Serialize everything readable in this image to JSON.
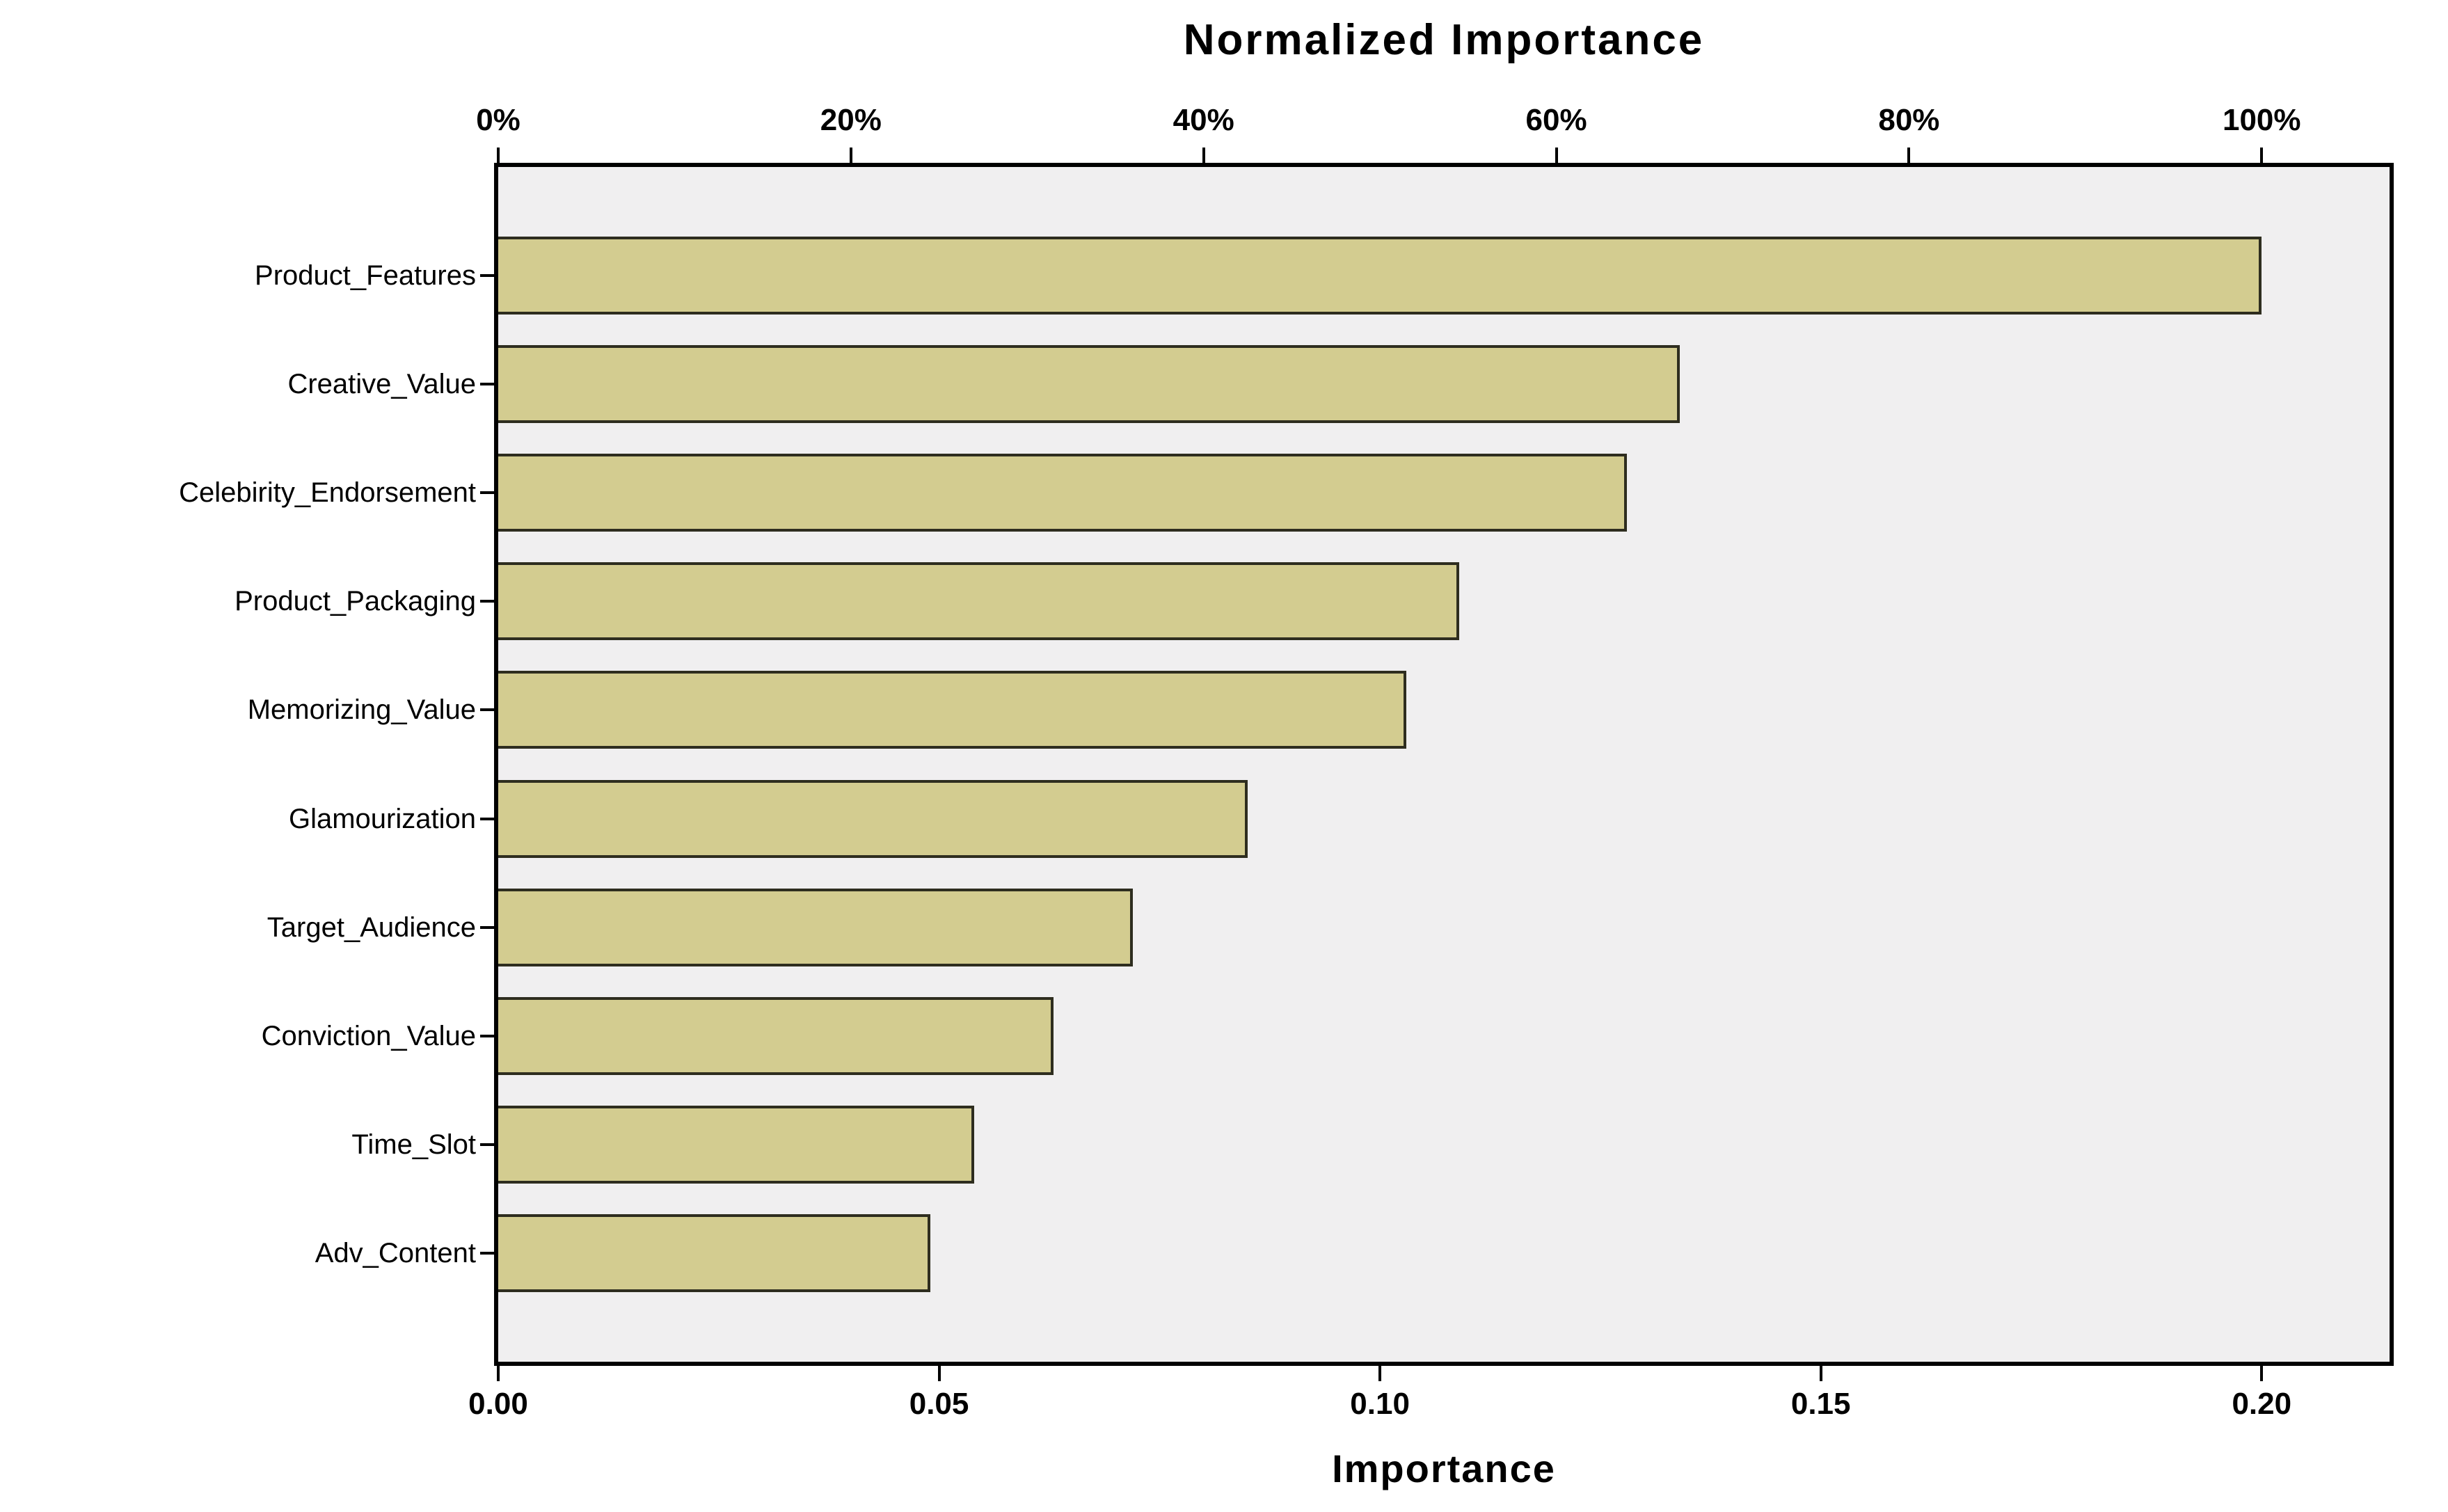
{
  "chart": {
    "title": "Normalized Importance",
    "x_axis_title": "Importance"
  },
  "chart_data": {
    "type": "bar",
    "orientation": "horizontal",
    "title": "Normalized Importance",
    "xlabel": "Importance",
    "ylabel": "",
    "categories": [
      "Product_Features",
      "Creative_Value",
      "Celebirity_Endorsement",
      "Product_Packaging",
      "Memorizing_Value",
      "Glamourization",
      "Target_Audience",
      "Conviction_Value",
      "Time_Slot",
      "Adv_Content"
    ],
    "values": [
      0.2,
      0.134,
      0.128,
      0.109,
      0.103,
      0.085,
      0.072,
      0.063,
      0.054,
      0.049
    ],
    "normalized_percent": [
      100,
      67,
      64,
      54.5,
      51.5,
      42.5,
      36,
      31.5,
      27,
      24.5
    ],
    "xlim": [
      0,
      0.2145
    ],
    "bottom_ticks": [
      {
        "label": "0.00",
        "value": 0.0
      },
      {
        "label": "0.05",
        "value": 0.05
      },
      {
        "label": "0.10",
        "value": 0.1
      },
      {
        "label": "0.15",
        "value": 0.15
      },
      {
        "label": "0.20",
        "value": 0.2
      }
    ],
    "top_ticks": [
      {
        "label": "0%",
        "value": 0.0
      },
      {
        "label": "20%",
        "value": 0.04
      },
      {
        "label": "40%",
        "value": 0.08
      },
      {
        "label": "60%",
        "value": 0.12
      },
      {
        "label": "80%",
        "value": 0.16
      },
      {
        "label": "100%",
        "value": 0.2
      }
    ],
    "grid": false,
    "legend": "none",
    "bar_color": "#d3cc90",
    "bar_border_color": "#2e2d1f",
    "plot_background": "#f0eff0",
    "frame_color": "#000000"
  }
}
